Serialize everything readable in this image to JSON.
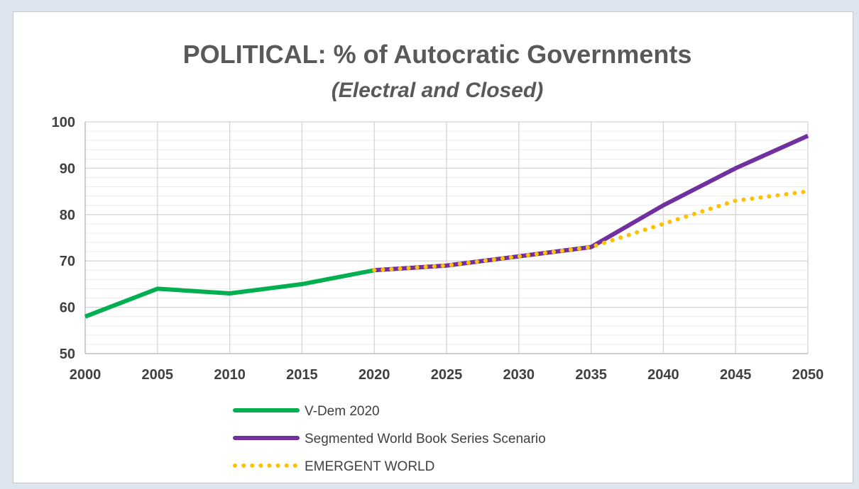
{
  "chart_data": {
    "type": "line",
    "title": "POLITICAL: % of Autocratic Governments",
    "subtitle": "(Electral and Closed)",
    "xlabel": "",
    "ylabel": "",
    "x": [
      2000,
      2005,
      2010,
      2015,
      2020,
      2025,
      2030,
      2035,
      2040,
      2045,
      2050
    ],
    "xlim": [
      2000,
      2050
    ],
    "ylim": [
      50,
      100
    ],
    "x_ticks": [
      "2000",
      "2005",
      "2010",
      "2015",
      "2020",
      "2025",
      "2030",
      "2035",
      "2040",
      "2045",
      "2050"
    ],
    "y_ticks": [
      "50",
      "60",
      "70",
      "80",
      "90",
      "100"
    ],
    "grid": true,
    "legend_position": "bottom",
    "series": [
      {
        "name": "V-Dem 2020",
        "color": "#00b050",
        "style": "solid",
        "points": [
          [
            2000,
            58
          ],
          [
            2005,
            64
          ],
          [
            2010,
            63
          ],
          [
            2015,
            65
          ],
          [
            2020,
            68
          ]
        ]
      },
      {
        "name": "Segmented World Book Series Scenario",
        "color": "#7030a0",
        "style": "solid",
        "points": [
          [
            2020,
            68
          ],
          [
            2025,
            69
          ],
          [
            2030,
            71
          ],
          [
            2035,
            73
          ],
          [
            2040,
            82
          ],
          [
            2045,
            90
          ],
          [
            2050,
            97
          ]
        ]
      },
      {
        "name": "EMERGENT WORLD",
        "color": "#ffc000",
        "style": "dotted",
        "points": [
          [
            2020,
            68
          ],
          [
            2025,
            69
          ],
          [
            2030,
            71
          ],
          [
            2035,
            73
          ],
          [
            2040,
            78
          ],
          [
            2045,
            83
          ],
          [
            2050,
            85
          ]
        ]
      }
    ]
  }
}
